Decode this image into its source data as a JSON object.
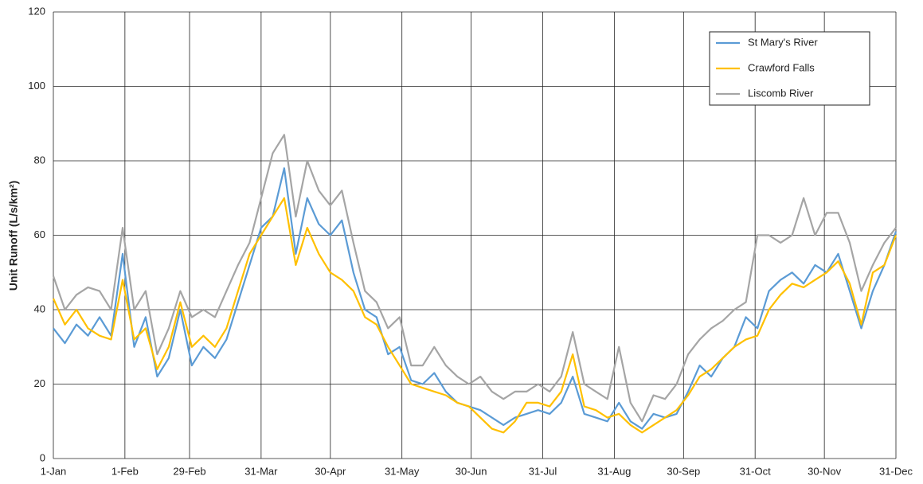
{
  "chart_data": {
    "type": "line",
    "y_label": "Unit Runoff  (L/s/km²)",
    "x": [
      0,
      5,
      10,
      15,
      20,
      25,
      30,
      35,
      40,
      45,
      50,
      55,
      60,
      65,
      70,
      75,
      80,
      85,
      90,
      95,
      100,
      105,
      110,
      115,
      120,
      125,
      130,
      135,
      140,
      145,
      150,
      155,
      160,
      165,
      170,
      175,
      180,
      185,
      190,
      195,
      200,
      205,
      210,
      215,
      220,
      225,
      230,
      235,
      240,
      245,
      250,
      255,
      260,
      265,
      270,
      275,
      280,
      285,
      290,
      295,
      300,
      305,
      310,
      315,
      320,
      325,
      330,
      335,
      340,
      345,
      350,
      355,
      360,
      365
    ],
    "series": [
      {
        "name": "St Mary's River",
        "color": "#5b9bd5",
        "values": [
          35,
          31,
          36,
          33,
          38,
          33,
          55,
          30,
          38,
          22,
          27,
          40,
          25,
          30,
          27,
          32,
          42,
          52,
          62,
          65,
          78,
          55,
          70,
          63,
          60,
          64,
          50,
          40,
          38,
          28,
          30,
          21,
          20,
          23,
          18,
          15,
          14,
          13,
          11,
          9,
          11,
          12,
          13,
          12,
          15,
          22,
          12,
          11,
          10,
          15,
          10,
          8,
          12,
          11,
          12,
          18,
          25,
          22,
          27,
          30,
          38,
          35,
          45,
          48,
          50,
          47,
          52,
          50,
          55,
          45,
          35,
          45,
          52,
          61
        ]
      },
      {
        "name": "Crawford Falls",
        "color": "#ffc000",
        "values": [
          43,
          36,
          40,
          35,
          33,
          32,
          48,
          32,
          35,
          24,
          30,
          42,
          30,
          33,
          30,
          35,
          45,
          55,
          60,
          65,
          70,
          52,
          62,
          55,
          50,
          48,
          45,
          38,
          36,
          30,
          25,
          20,
          19,
          18,
          17,
          15,
          14,
          11,
          8,
          7,
          10,
          15,
          15,
          14,
          18,
          28,
          14,
          13,
          11,
          12,
          9,
          7,
          9,
          11,
          13,
          17,
          22,
          24,
          27,
          30,
          32,
          33,
          40,
          44,
          47,
          46,
          48,
          50,
          53,
          47,
          36,
          50,
          52,
          60
        ]
      },
      {
        "name": "Liscomb River",
        "color": "#a5a5a5",
        "values": [
          49,
          40,
          44,
          46,
          45,
          40,
          62,
          40,
          45,
          28,
          35,
          45,
          38,
          40,
          38,
          45,
          52,
          58,
          70,
          82,
          87,
          65,
          80,
          72,
          68,
          72,
          58,
          45,
          42,
          35,
          38,
          25,
          25,
          30,
          25,
          22,
          20,
          22,
          18,
          16,
          18,
          18,
          20,
          18,
          22,
          34,
          20,
          18,
          16,
          30,
          15,
          10,
          17,
          16,
          20,
          28,
          32,
          35,
          37,
          40,
          42,
          60,
          60,
          58,
          60,
          70,
          60,
          66,
          66,
          58,
          45,
          52,
          58,
          62
        ]
      }
    ],
    "xlim": [
      0,
      365
    ],
    "xticks": [
      {
        "value": 0,
        "label": "1-Jan"
      },
      {
        "value": 31,
        "label": "1-Feb"
      },
      {
        "value": 59,
        "label": "29-Feb"
      },
      {
        "value": 90,
        "label": "31-Mar"
      },
      {
        "value": 120,
        "label": "30-Apr"
      },
      {
        "value": 151,
        "label": "31-May"
      },
      {
        "value": 181,
        "label": "30-Jun"
      },
      {
        "value": 212,
        "label": "31-Jul"
      },
      {
        "value": 243,
        "label": "31-Aug"
      },
      {
        "value": 273,
        "label": "30-Sep"
      },
      {
        "value": 304,
        "label": "31-Oct"
      },
      {
        "value": 334,
        "label": "30-Nov"
      },
      {
        "value": 365,
        "label": "31-Dec"
      }
    ],
    "ylim": [
      0,
      120
    ],
    "yticks": [
      0,
      20,
      40,
      60,
      80,
      100,
      120
    ],
    "grid": true,
    "legend": "top-right"
  }
}
